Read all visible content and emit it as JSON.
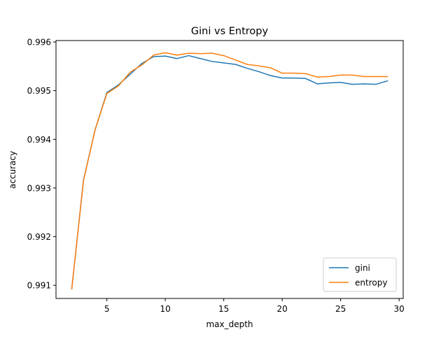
{
  "chart_data": {
    "type": "line",
    "title": "Gini vs Entropy",
    "xlabel": "max_depth",
    "ylabel": "accuracy",
    "xlim": [
      0.65,
      30.35
    ],
    "ylim": [
      0.99073,
      0.99603
    ],
    "xticks": [
      5,
      10,
      15,
      20,
      25,
      30
    ],
    "yticks": [
      0.991,
      0.992,
      0.993,
      0.994,
      0.995,
      0.996
    ],
    "legend_position": "lower-right",
    "grid": false,
    "x": [
      2,
      3,
      4,
      5,
      6,
      7,
      8,
      9,
      10,
      11,
      12,
      13,
      14,
      15,
      16,
      17,
      18,
      19,
      20,
      21,
      22,
      23,
      24,
      25,
      26,
      27,
      28,
      29
    ],
    "series": [
      {
        "name": "gini",
        "color": "#1f77b4",
        "values": [
          0.99093,
          0.99316,
          0.9942,
          0.99496,
          0.99512,
          0.99534,
          0.99556,
          0.9957,
          0.99571,
          0.99566,
          0.99572,
          0.99566,
          0.9956,
          0.99557,
          0.99554,
          0.99546,
          0.99539,
          0.99531,
          0.99526,
          0.99526,
          0.99525,
          0.99514,
          0.99516,
          0.99517,
          0.99513,
          0.99514,
          0.99513,
          0.9952
        ]
      },
      {
        "name": "entropy",
        "color": "#ff7f0e",
        "values": [
          0.99093,
          0.99315,
          0.9942,
          0.99494,
          0.9951,
          0.99538,
          0.99553,
          0.99573,
          0.99578,
          0.99573,
          0.99577,
          0.99576,
          0.99577,
          0.99572,
          0.99563,
          0.99554,
          0.99551,
          0.99547,
          0.99536,
          0.99536,
          0.99535,
          0.99528,
          0.99529,
          0.99532,
          0.99532,
          0.99529,
          0.99529,
          0.99529
        ]
      }
    ]
  }
}
